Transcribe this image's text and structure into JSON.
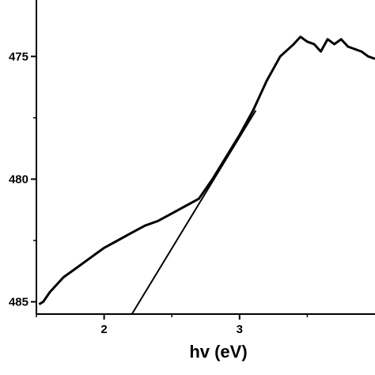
{
  "chart_data": {
    "type": "line",
    "title": "",
    "xlabel": "hv (eV)",
    "ylabel": "",
    "xlim": [
      1.5,
      4.0
    ],
    "y_axis_reversed": true,
    "ylim_display": [
      485.5,
      472.7
    ],
    "x_ticks": [
      {
        "value": 2,
        "label": "2"
      },
      {
        "value": 3,
        "label": "3"
      }
    ],
    "y_ticks": [
      {
        "value": 475,
        "label": "475"
      },
      {
        "value": 480,
        "label": "480"
      },
      {
        "value": 485,
        "label": "485"
      }
    ],
    "grid": false,
    "legend": "none",
    "series": [
      {
        "kind": "data-curve",
        "color": "#000000",
        "x": [
          1.52,
          1.55,
          1.6,
          1.7,
          1.8,
          1.9,
          2.0,
          2.1,
          2.2,
          2.3,
          2.4,
          2.5,
          2.6,
          2.7,
          2.8,
          2.9,
          3.0,
          3.1,
          3.2,
          3.3,
          3.4,
          3.45,
          3.5,
          3.55,
          3.6,
          3.65,
          3.7,
          3.75,
          3.8,
          3.85,
          3.9,
          3.95,
          4.0
        ],
        "y": [
          485.1,
          485.0,
          484.6,
          484.0,
          483.6,
          483.2,
          482.8,
          482.5,
          482.2,
          481.9,
          481.7,
          481.4,
          481.1,
          480.8,
          480.0,
          479.1,
          478.2,
          477.2,
          476.0,
          475.0,
          474.5,
          474.2,
          474.4,
          474.5,
          474.8,
          474.3,
          474.5,
          474.3,
          474.6,
          474.7,
          474.8,
          475.0,
          475.1
        ]
      },
      {
        "kind": "tangent-line",
        "color": "#000000",
        "x": [
          2.15,
          3.12
        ],
        "y": [
          486.0,
          477.2
        ]
      }
    ]
  }
}
